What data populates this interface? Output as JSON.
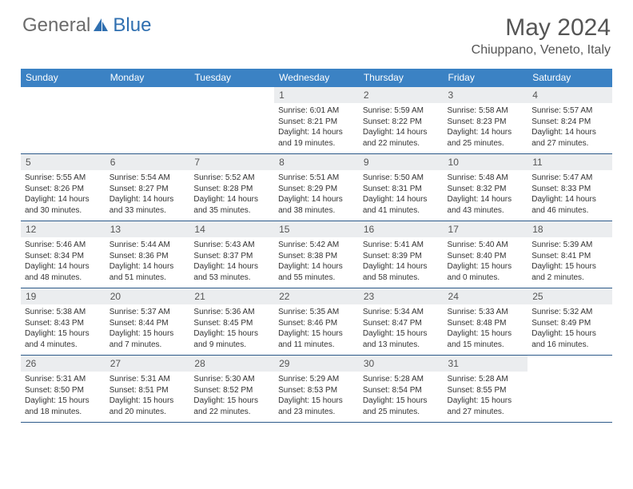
{
  "logo": {
    "text1": "General",
    "text2": "Blue"
  },
  "header": {
    "month": "May 2024",
    "location": "Chiuppano, Veneto, Italy"
  },
  "colors": {
    "header_bg": "#3b82c4",
    "header_text": "#ffffff",
    "daynum_bg": "#ebedef",
    "border": "#2d5a8a",
    "logo_gray": "#6b6b6b",
    "logo_blue": "#2f6fb0"
  },
  "weekdays": [
    "Sunday",
    "Monday",
    "Tuesday",
    "Wednesday",
    "Thursday",
    "Friday",
    "Saturday"
  ],
  "weeks": [
    [
      null,
      null,
      null,
      {
        "n": "1",
        "sr": "Sunrise: 6:01 AM",
        "ss": "Sunset: 8:21 PM",
        "dl1": "Daylight: 14 hours",
        "dl2": "and 19 minutes."
      },
      {
        "n": "2",
        "sr": "Sunrise: 5:59 AM",
        "ss": "Sunset: 8:22 PM",
        "dl1": "Daylight: 14 hours",
        "dl2": "and 22 minutes."
      },
      {
        "n": "3",
        "sr": "Sunrise: 5:58 AM",
        "ss": "Sunset: 8:23 PM",
        "dl1": "Daylight: 14 hours",
        "dl2": "and 25 minutes."
      },
      {
        "n": "4",
        "sr": "Sunrise: 5:57 AM",
        "ss": "Sunset: 8:24 PM",
        "dl1": "Daylight: 14 hours",
        "dl2": "and 27 minutes."
      }
    ],
    [
      {
        "n": "5",
        "sr": "Sunrise: 5:55 AM",
        "ss": "Sunset: 8:26 PM",
        "dl1": "Daylight: 14 hours",
        "dl2": "and 30 minutes."
      },
      {
        "n": "6",
        "sr": "Sunrise: 5:54 AM",
        "ss": "Sunset: 8:27 PM",
        "dl1": "Daylight: 14 hours",
        "dl2": "and 33 minutes."
      },
      {
        "n": "7",
        "sr": "Sunrise: 5:52 AM",
        "ss": "Sunset: 8:28 PM",
        "dl1": "Daylight: 14 hours",
        "dl2": "and 35 minutes."
      },
      {
        "n": "8",
        "sr": "Sunrise: 5:51 AM",
        "ss": "Sunset: 8:29 PM",
        "dl1": "Daylight: 14 hours",
        "dl2": "and 38 minutes."
      },
      {
        "n": "9",
        "sr": "Sunrise: 5:50 AM",
        "ss": "Sunset: 8:31 PM",
        "dl1": "Daylight: 14 hours",
        "dl2": "and 41 minutes."
      },
      {
        "n": "10",
        "sr": "Sunrise: 5:48 AM",
        "ss": "Sunset: 8:32 PM",
        "dl1": "Daylight: 14 hours",
        "dl2": "and 43 minutes."
      },
      {
        "n": "11",
        "sr": "Sunrise: 5:47 AM",
        "ss": "Sunset: 8:33 PM",
        "dl1": "Daylight: 14 hours",
        "dl2": "and 46 minutes."
      }
    ],
    [
      {
        "n": "12",
        "sr": "Sunrise: 5:46 AM",
        "ss": "Sunset: 8:34 PM",
        "dl1": "Daylight: 14 hours",
        "dl2": "and 48 minutes."
      },
      {
        "n": "13",
        "sr": "Sunrise: 5:44 AM",
        "ss": "Sunset: 8:36 PM",
        "dl1": "Daylight: 14 hours",
        "dl2": "and 51 minutes."
      },
      {
        "n": "14",
        "sr": "Sunrise: 5:43 AM",
        "ss": "Sunset: 8:37 PM",
        "dl1": "Daylight: 14 hours",
        "dl2": "and 53 minutes."
      },
      {
        "n": "15",
        "sr": "Sunrise: 5:42 AM",
        "ss": "Sunset: 8:38 PM",
        "dl1": "Daylight: 14 hours",
        "dl2": "and 55 minutes."
      },
      {
        "n": "16",
        "sr": "Sunrise: 5:41 AM",
        "ss": "Sunset: 8:39 PM",
        "dl1": "Daylight: 14 hours",
        "dl2": "and 58 minutes."
      },
      {
        "n": "17",
        "sr": "Sunrise: 5:40 AM",
        "ss": "Sunset: 8:40 PM",
        "dl1": "Daylight: 15 hours",
        "dl2": "and 0 minutes."
      },
      {
        "n": "18",
        "sr": "Sunrise: 5:39 AM",
        "ss": "Sunset: 8:41 PM",
        "dl1": "Daylight: 15 hours",
        "dl2": "and 2 minutes."
      }
    ],
    [
      {
        "n": "19",
        "sr": "Sunrise: 5:38 AM",
        "ss": "Sunset: 8:43 PM",
        "dl1": "Daylight: 15 hours",
        "dl2": "and 4 minutes."
      },
      {
        "n": "20",
        "sr": "Sunrise: 5:37 AM",
        "ss": "Sunset: 8:44 PM",
        "dl1": "Daylight: 15 hours",
        "dl2": "and 7 minutes."
      },
      {
        "n": "21",
        "sr": "Sunrise: 5:36 AM",
        "ss": "Sunset: 8:45 PM",
        "dl1": "Daylight: 15 hours",
        "dl2": "and 9 minutes."
      },
      {
        "n": "22",
        "sr": "Sunrise: 5:35 AM",
        "ss": "Sunset: 8:46 PM",
        "dl1": "Daylight: 15 hours",
        "dl2": "and 11 minutes."
      },
      {
        "n": "23",
        "sr": "Sunrise: 5:34 AM",
        "ss": "Sunset: 8:47 PM",
        "dl1": "Daylight: 15 hours",
        "dl2": "and 13 minutes."
      },
      {
        "n": "24",
        "sr": "Sunrise: 5:33 AM",
        "ss": "Sunset: 8:48 PM",
        "dl1": "Daylight: 15 hours",
        "dl2": "and 15 minutes."
      },
      {
        "n": "25",
        "sr": "Sunrise: 5:32 AM",
        "ss": "Sunset: 8:49 PM",
        "dl1": "Daylight: 15 hours",
        "dl2": "and 16 minutes."
      }
    ],
    [
      {
        "n": "26",
        "sr": "Sunrise: 5:31 AM",
        "ss": "Sunset: 8:50 PM",
        "dl1": "Daylight: 15 hours",
        "dl2": "and 18 minutes."
      },
      {
        "n": "27",
        "sr": "Sunrise: 5:31 AM",
        "ss": "Sunset: 8:51 PM",
        "dl1": "Daylight: 15 hours",
        "dl2": "and 20 minutes."
      },
      {
        "n": "28",
        "sr": "Sunrise: 5:30 AM",
        "ss": "Sunset: 8:52 PM",
        "dl1": "Daylight: 15 hours",
        "dl2": "and 22 minutes."
      },
      {
        "n": "29",
        "sr": "Sunrise: 5:29 AM",
        "ss": "Sunset: 8:53 PM",
        "dl1": "Daylight: 15 hours",
        "dl2": "and 23 minutes."
      },
      {
        "n": "30",
        "sr": "Sunrise: 5:28 AM",
        "ss": "Sunset: 8:54 PM",
        "dl1": "Daylight: 15 hours",
        "dl2": "and 25 minutes."
      },
      {
        "n": "31",
        "sr": "Sunrise: 5:28 AM",
        "ss": "Sunset: 8:55 PM",
        "dl1": "Daylight: 15 hours",
        "dl2": "and 27 minutes."
      },
      null
    ]
  ]
}
